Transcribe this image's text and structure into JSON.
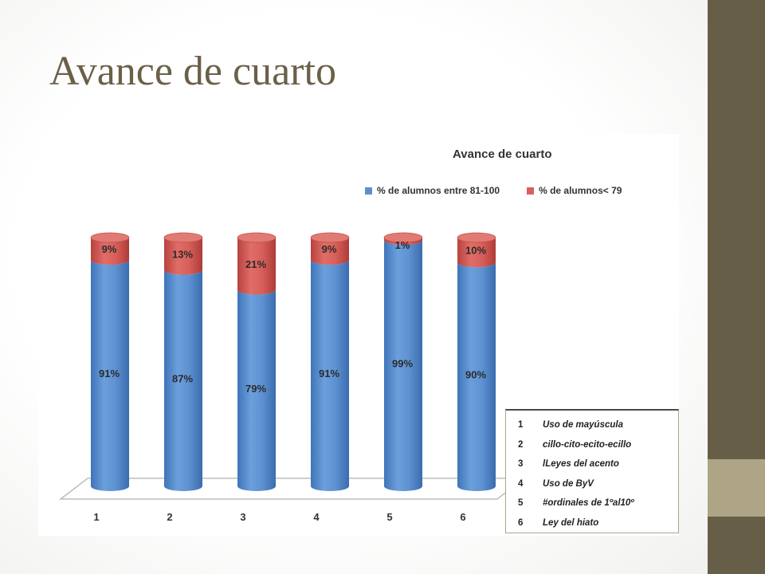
{
  "slide": {
    "title": "Avance de cuarto"
  },
  "colors": {
    "sidebar": "#675e47",
    "sidebar_accent": "#ada585",
    "title": "#6b6048",
    "series_blue": "#5b8fd0",
    "series_red": "#d9605b"
  },
  "chart_data": {
    "type": "bar",
    "stacked": true,
    "title": "Avance de cuarto",
    "categories": [
      "1",
      "2",
      "3",
      "4",
      "5",
      "6"
    ],
    "series": [
      {
        "name": "% de alumnos entre 81-100",
        "values": [
          91,
          87,
          79,
          91,
          99,
          90
        ],
        "labels": [
          "91%",
          "87%",
          "79%",
          "91%",
          "99%",
          "90%"
        ]
      },
      {
        "name": "% de alumnos< 79",
        "values": [
          9,
          13,
          21,
          9,
          1,
          10
        ],
        "labels": [
          "9%",
          "13%",
          "21%",
          "9%",
          "1%",
          "10%"
        ]
      }
    ],
    "ylim": [
      0,
      100
    ],
    "grid": false,
    "legend_position": "top",
    "key": [
      {
        "num": "1",
        "text": "Uso de mayúscula"
      },
      {
        "num": "2",
        "text": "cillo-cito-ecito-ecillo"
      },
      {
        "num": "3",
        "text": "lLeyes del acento"
      },
      {
        "num": "4",
        "text": "Uso de ByV"
      },
      {
        "num": "5",
        "text": "#ordinales de 1ºal10º"
      },
      {
        "num": "6",
        "text": "Ley del hiato"
      }
    ]
  }
}
